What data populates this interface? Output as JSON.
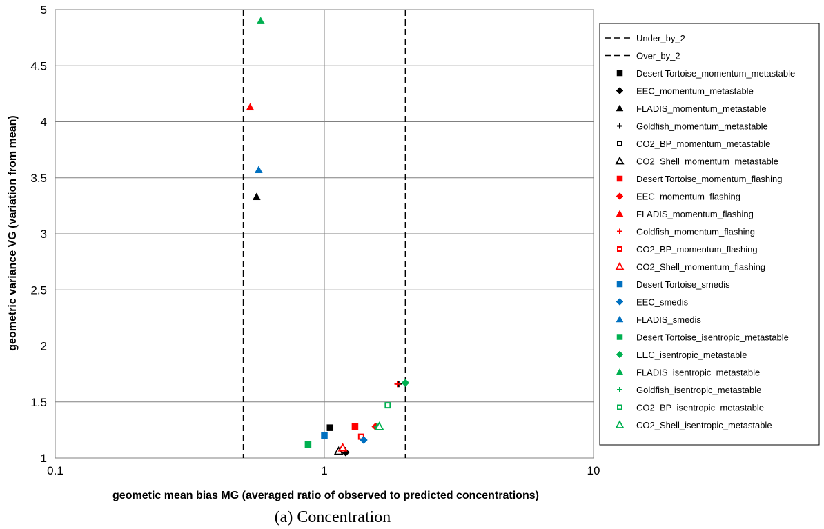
{
  "chart_data": {
    "type": "scatter",
    "title": "",
    "caption": "(a) Concentration",
    "xlabel": "geometic mean bias MG (averaged ratio of observed to predicted concentrations)",
    "ylabel": "geometric variance VG (variation from mean)",
    "xscale": "log",
    "xlim": [
      0.1,
      10
    ],
    "ylim": [
      1,
      5
    ],
    "x_ticks": [
      "0.1",
      "1",
      "10"
    ],
    "y_ticks": [
      "1",
      "1.5",
      "2",
      "2.5",
      "3",
      "3.5",
      "4",
      "4.5",
      "5"
    ],
    "grid": true,
    "legend_position": "right",
    "reference_lines": [
      {
        "name": "Under_by_2",
        "x": 0.5,
        "style": "dashed",
        "color": "#000000"
      },
      {
        "name": "Over_by_2",
        "x": 2,
        "style": "dashed",
        "color": "#000000"
      }
    ],
    "series": [
      {
        "name": "Desert Tortoise_momentum_metastable",
        "marker": "square",
        "filled": true,
        "color": "#000000",
        "points": [
          [
            1.05,
            1.27
          ]
        ]
      },
      {
        "name": "EEC_momentum_metastable",
        "marker": "diamond",
        "filled": true,
        "color": "#000000",
        "points": [
          [
            1.2,
            1.05
          ]
        ]
      },
      {
        "name": "FLADIS_momentum_metastable",
        "marker": "triangle",
        "filled": true,
        "color": "#000000",
        "points": [
          [
            0.56,
            3.33
          ]
        ]
      },
      {
        "name": "Goldfish_momentum_metastable",
        "marker": "plus",
        "filled": true,
        "color": "#000000",
        "points": [
          [
            1.89,
            1.66
          ]
        ]
      },
      {
        "name": "CO2_BP_momentum_metastable",
        "marker": "square",
        "filled": false,
        "color": "#000000",
        "points": [
          [
            1.17,
            1.07
          ]
        ]
      },
      {
        "name": "CO2_Shell_momentum_metastable",
        "marker": "triangle",
        "filled": false,
        "color": "#000000",
        "points": [
          [
            1.13,
            1.06
          ]
        ]
      },
      {
        "name": "Desert Tortoise_momentum_flashing",
        "marker": "square",
        "filled": true,
        "color": "#ff0000",
        "points": [
          [
            1.3,
            1.28
          ]
        ]
      },
      {
        "name": "EEC_momentum_flashing",
        "marker": "diamond",
        "filled": true,
        "color": "#ff0000",
        "points": [
          [
            1.55,
            1.28
          ]
        ]
      },
      {
        "name": "FLADIS_momentum_flashing",
        "marker": "triangle",
        "filled": true,
        "color": "#ff0000",
        "points": [
          [
            0.53,
            4.13
          ]
        ]
      },
      {
        "name": "Goldfish_momentum_flashing",
        "marker": "plus",
        "filled": true,
        "color": "#ff0000",
        "points": [
          [
            1.87,
            1.66
          ]
        ]
      },
      {
        "name": "CO2_BP_momentum_flashing",
        "marker": "square",
        "filled": false,
        "color": "#ff0000",
        "points": [
          [
            1.37,
            1.19
          ]
        ]
      },
      {
        "name": "CO2_Shell_momentum_flashing",
        "marker": "triangle",
        "filled": false,
        "color": "#ff0000",
        "points": [
          [
            1.17,
            1.09
          ]
        ]
      },
      {
        "name": "Desert Tortoise_smedis",
        "marker": "square",
        "filled": true,
        "color": "#0070c0",
        "points": [
          [
            1.0,
            1.2
          ]
        ]
      },
      {
        "name": "EEC_smedis",
        "marker": "diamond",
        "filled": true,
        "color": "#0070c0",
        "points": [
          [
            1.4,
            1.16
          ]
        ]
      },
      {
        "name": "FLADIS_smedis",
        "marker": "triangle",
        "filled": true,
        "color": "#0070c0",
        "points": [
          [
            0.57,
            3.57
          ]
        ]
      },
      {
        "name": "Desert Tortoise_isentropic_metastable",
        "marker": "square",
        "filled": true,
        "color": "#00b050",
        "points": [
          [
            0.87,
            1.12
          ]
        ]
      },
      {
        "name": "EEC_isentropic_metastable",
        "marker": "diamond",
        "filled": true,
        "color": "#00b050",
        "points": [
          [
            2.0,
            1.67
          ]
        ]
      },
      {
        "name": "FLADIS_isentropic_metastable",
        "marker": "triangle",
        "filled": true,
        "color": "#00b050",
        "points": [
          [
            0.58,
            4.9
          ]
        ]
      },
      {
        "name": "Goldfish_isentropic_metastable",
        "marker": "plus",
        "filled": true,
        "color": "#00b050",
        "points": [
          [
            1.57,
            1.28
          ]
        ]
      },
      {
        "name": "CO2_BP_isentropic_metastable",
        "marker": "square",
        "filled": false,
        "color": "#00b050",
        "points": [
          [
            1.72,
            1.47
          ]
        ]
      },
      {
        "name": "CO2_Shell_isentropic_metastable",
        "marker": "triangle",
        "filled": false,
        "color": "#00b050",
        "points": [
          [
            1.6,
            1.28
          ]
        ]
      }
    ]
  }
}
